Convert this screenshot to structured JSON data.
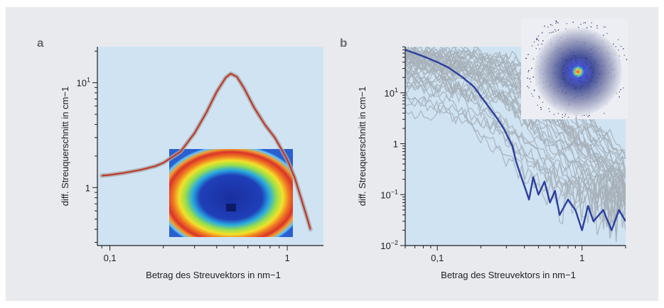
{
  "figure": {
    "background": "#e8eaee",
    "plot_background": "#cfe3f3"
  },
  "chart_data": [
    {
      "panel": "a",
      "type": "line",
      "xlabel": "Betrag des Streuvektors in nm−1",
      "ylabel": "diff. Streuquerschnitt in cm−1",
      "x_scale": "log",
      "y_scale": "log",
      "xlim": [
        0.085,
        1.6
      ],
      "ylim": [
        0.28,
        22
      ],
      "x_ticks": [
        {
          "value": 0.1,
          "label": "0,1"
        },
        {
          "value": 1,
          "label": "1"
        }
      ],
      "y_ticks": [
        {
          "value": 1,
          "label": "1"
        },
        {
          "value": 10,
          "label": "10",
          "sup": "1"
        }
      ],
      "grid": false,
      "series": [
        {
          "color": "#c0392b",
          "band_color": "#a8a8a8",
          "x": [
            0.09,
            0.1,
            0.12,
            0.15,
            0.18,
            0.2,
            0.25,
            0.3,
            0.35,
            0.4,
            0.45,
            0.48,
            0.52,
            0.57,
            0.65,
            0.75,
            0.85,
            1.0,
            1.1,
            1.2,
            1.3,
            1.35
          ],
          "y": [
            1.3,
            1.32,
            1.38,
            1.48,
            1.6,
            1.72,
            2.2,
            3.3,
            5.2,
            8.2,
            11.2,
            12.2,
            11.4,
            8.9,
            5.8,
            3.95,
            3.0,
            1.85,
            1.25,
            0.78,
            0.5,
            0.4
          ]
        }
      ],
      "inset": {
        "kind": "detector-image",
        "pattern": "ring"
      }
    },
    {
      "panel": "b",
      "type": "line",
      "xlabel": "Betrag des Streuvektors in nm−1",
      "ylabel": "diff. Streuquerschnitt in cm−1",
      "x_scale": "log",
      "y_scale": "log",
      "xlim": [
        0.06,
        2.0
      ],
      "ylim": [
        0.01,
        80
      ],
      "x_ticks": [
        {
          "value": 0.1,
          "label": "0,1"
        },
        {
          "value": 1,
          "label": "1"
        }
      ],
      "y_ticks": [
        {
          "value": 0.01,
          "label": "10",
          "sup": "−2"
        },
        {
          "value": 0.1,
          "label": "10",
          "sup": "−1"
        },
        {
          "value": 1,
          "label": "1"
        },
        {
          "value": 10,
          "label": "10",
          "sup": "1"
        }
      ],
      "grid": false,
      "series": [
        {
          "color": "#2c3e9e",
          "x": [
            0.06,
            0.07,
            0.08,
            0.1,
            0.12,
            0.15,
            0.18,
            0.2,
            0.23,
            0.26,
            0.29,
            0.31,
            0.33,
            0.35,
            0.37,
            0.39,
            0.41,
            0.43,
            0.46,
            0.5,
            0.55,
            0.6,
            0.65,
            0.7,
            0.8,
            0.9,
            1.0,
            1.1,
            1.2,
            1.4,
            1.6,
            1.8,
            2.0
          ],
          "y": [
            70,
            60,
            52,
            40,
            31,
            20,
            13,
            8.5,
            5.0,
            3.1,
            1.9,
            1.3,
            0.9,
            0.45,
            0.28,
            0.18,
            0.12,
            0.08,
            0.22,
            0.1,
            0.18,
            0.07,
            0.12,
            0.04,
            0.08,
            0.05,
            0.02,
            0.06,
            0.03,
            0.05,
            0.02,
            0.05,
            0.03
          ]
        }
      ],
      "background_curves": {
        "color": "#a7b0b8",
        "count": 40
      },
      "inset": {
        "kind": "detector-image",
        "pattern": "spot"
      }
    }
  ]
}
